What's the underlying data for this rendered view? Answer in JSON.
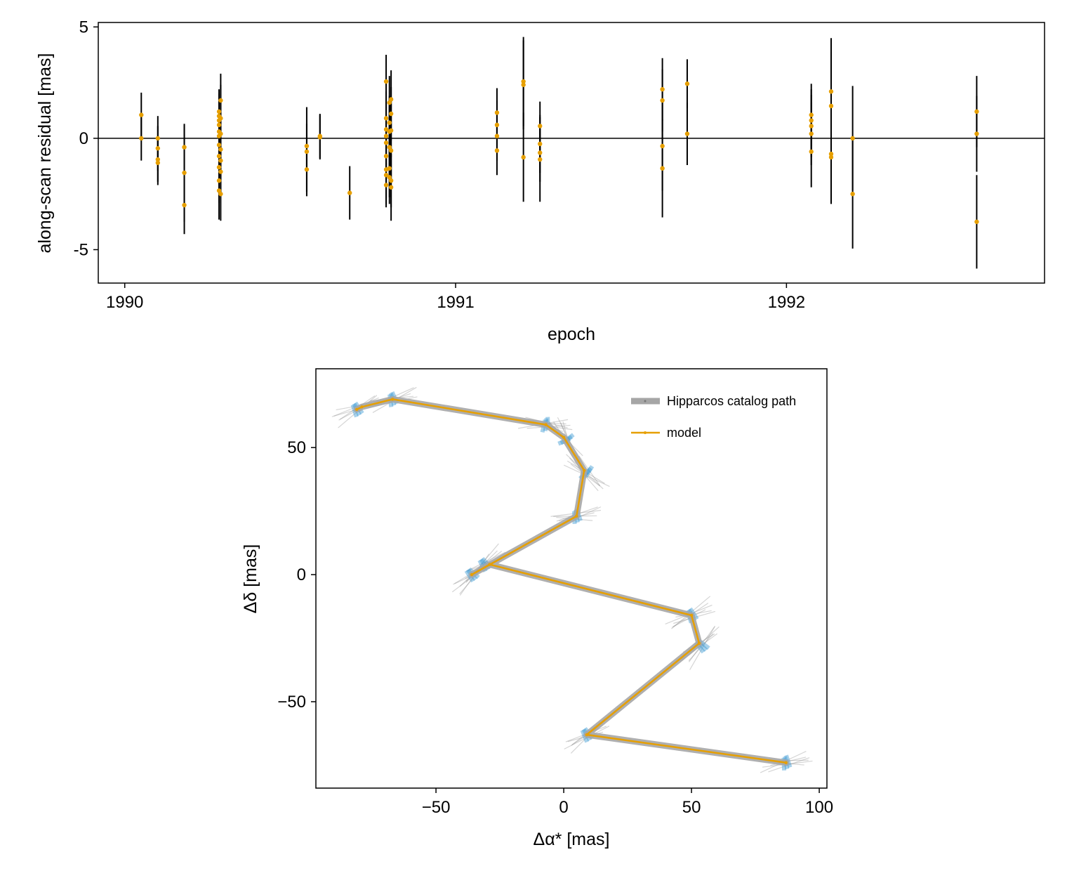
{
  "chart_data": [
    {
      "type": "scatter",
      "xlabel": "epoch",
      "ylabel": "along-scan residual [mas]",
      "xticks": [
        1990,
        1991,
        1992
      ],
      "yticks": [
        -5,
        0,
        5
      ],
      "ytick_labels": [
        "-5",
        "0",
        "5"
      ],
      "xlim": [
        1989.92,
        1992.78
      ],
      "ylim": [
        -6.5,
        5.2
      ],
      "zero_line": 0,
      "colors": {
        "point": "#e69f00",
        "errorbar": "#000000"
      },
      "points": [
        {
          "x": 1990.05,
          "y": 1.05,
          "err": 1.0
        },
        {
          "x": 1990.05,
          "y": 0.0,
          "err": 1.0
        },
        {
          "x": 1990.1,
          "y": 0.0,
          "err": 1.0
        },
        {
          "x": 1990.1,
          "y": -0.45,
          "err": 1.0
        },
        {
          "x": 1990.1,
          "y": -0.95,
          "err": 1.0
        },
        {
          "x": 1990.1,
          "y": -1.1,
          "err": 1.0
        },
        {
          "x": 1990.18,
          "y": -0.4,
          "err": 1.0
        },
        {
          "x": 1990.18,
          "y": -1.55,
          "err": 2.2
        },
        {
          "x": 1990.18,
          "y": -3.0,
          "err": 1.3
        },
        {
          "x": 1990.285,
          "y": 1.2,
          "err": 1.0
        },
        {
          "x": 1990.285,
          "y": 1.0,
          "err": 1.0
        },
        {
          "x": 1990.285,
          "y": 0.8,
          "err": 1.0
        },
        {
          "x": 1990.285,
          "y": 0.6,
          "err": 1.0
        },
        {
          "x": 1990.285,
          "y": 0.3,
          "err": 1.0
        },
        {
          "x": 1990.285,
          "y": 0.1,
          "err": 1.0
        },
        {
          "x": 1990.285,
          "y": -0.3,
          "err": 1.2
        },
        {
          "x": 1990.285,
          "y": -0.8,
          "err": 1.5
        },
        {
          "x": 1990.285,
          "y": -1.3,
          "err": 1.0
        },
        {
          "x": 1990.285,
          "y": -1.9,
          "err": 1.0
        },
        {
          "x": 1990.285,
          "y": -2.35,
          "err": 1.3
        },
        {
          "x": 1990.29,
          "y": 1.7,
          "err": 1.2
        },
        {
          "x": 1990.29,
          "y": 0.9,
          "err": 1.5
        },
        {
          "x": 1990.29,
          "y": 0.2,
          "err": 1.0
        },
        {
          "x": 1990.29,
          "y": -0.5,
          "err": 1.2
        },
        {
          "x": 1990.29,
          "y": -1.0,
          "err": 1.0
        },
        {
          "x": 1990.29,
          "y": -1.5,
          "err": 1.0
        },
        {
          "x": 1990.29,
          "y": -2.5,
          "err": 1.2
        },
        {
          "x": 1990.55,
          "y": -0.35,
          "err": 1.0
        },
        {
          "x": 1990.55,
          "y": -0.6,
          "err": 2.0
        },
        {
          "x": 1990.55,
          "y": -1.4,
          "err": 1.0
        },
        {
          "x": 1990.59,
          "y": 0.1,
          "err": 1.0
        },
        {
          "x": 1990.59,
          "y": 0.05,
          "err": 1.0
        },
        {
          "x": 1990.68,
          "y": -2.45,
          "err": 1.2
        },
        {
          "x": 1990.79,
          "y": 2.55,
          "err": 1.2
        },
        {
          "x": 1990.79,
          "y": 0.9,
          "err": 1.2
        },
        {
          "x": 1990.79,
          "y": 0.4,
          "err": 1.2
        },
        {
          "x": 1990.79,
          "y": 0.1,
          "err": 1.3
        },
        {
          "x": 1990.79,
          "y": -0.2,
          "err": 1.3
        },
        {
          "x": 1990.79,
          "y": -0.8,
          "err": 1.2
        },
        {
          "x": 1990.79,
          "y": -1.4,
          "err": 1.3
        },
        {
          "x": 1990.79,
          "y": -1.65,
          "err": 1.3
        },
        {
          "x": 1990.79,
          "y": -2.1,
          "err": 1.0
        },
        {
          "x": 1990.8,
          "y": 1.6,
          "err": 1.2
        },
        {
          "x": 1990.8,
          "y": 0.7,
          "err": 1.2
        },
        {
          "x": 1990.8,
          "y": 0.3,
          "err": 1.2
        },
        {
          "x": 1990.8,
          "y": -0.4,
          "err": 1.2
        },
        {
          "x": 1990.8,
          "y": -1.35,
          "err": 1.3
        },
        {
          "x": 1990.8,
          "y": -1.75,
          "err": 1.2
        },
        {
          "x": 1990.805,
          "y": 1.75,
          "err": 1.3
        },
        {
          "x": 1990.805,
          "y": 1.1,
          "err": 1.2
        },
        {
          "x": 1990.805,
          "y": 0.35,
          "err": 1.2
        },
        {
          "x": 1990.805,
          "y": -0.55,
          "err": 1.2
        },
        {
          "x": 1990.805,
          "y": -1.9,
          "err": 1.2
        },
        {
          "x": 1990.805,
          "y": -2.2,
          "err": 1.5
        },
        {
          "x": 1991.125,
          "y": 1.15,
          "err": 1.1
        },
        {
          "x": 1991.125,
          "y": 0.6,
          "err": 1.1
        },
        {
          "x": 1991.125,
          "y": 0.1,
          "err": 1.1
        },
        {
          "x": 1991.125,
          "y": -0.55,
          "err": 1.1
        },
        {
          "x": 1991.205,
          "y": 2.55,
          "err": 2.0
        },
        {
          "x": 1991.205,
          "y": 2.4,
          "err": 2.0
        },
        {
          "x": 1991.205,
          "y": -0.85,
          "err": 2.0
        },
        {
          "x": 1991.255,
          "y": 0.55,
          "err": 1.1
        },
        {
          "x": 1991.255,
          "y": -0.25,
          "err": 1.3
        },
        {
          "x": 1991.255,
          "y": -0.65,
          "err": 1.3
        },
        {
          "x": 1991.255,
          "y": -0.95,
          "err": 1.9
        },
        {
          "x": 1991.625,
          "y": 2.2,
          "err": 1.4
        },
        {
          "x": 1991.625,
          "y": 1.7,
          "err": 1.4
        },
        {
          "x": 1991.625,
          "y": -0.35,
          "err": 2.0
        },
        {
          "x": 1991.625,
          "y": -1.35,
          "err": 2.2
        },
        {
          "x": 1991.7,
          "y": 2.45,
          "err": 1.1
        },
        {
          "x": 1991.7,
          "y": 0.2,
          "err": 1.4
        },
        {
          "x": 1992.075,
          "y": 1.05,
          "err": 1.4
        },
        {
          "x": 1992.075,
          "y": 0.8,
          "err": 1.4
        },
        {
          "x": 1992.075,
          "y": 0.55,
          "err": 1.4
        },
        {
          "x": 1992.075,
          "y": 0.2,
          "err": 1.4
        },
        {
          "x": 1992.075,
          "y": -0.6,
          "err": 1.6
        },
        {
          "x": 1992.135,
          "y": 2.1,
          "err": 2.4
        },
        {
          "x": 1992.135,
          "y": 1.45,
          "err": 2.4
        },
        {
          "x": 1992.135,
          "y": -0.7,
          "err": 2.2
        },
        {
          "x": 1992.135,
          "y": -0.85,
          "err": 2.1
        },
        {
          "x": 1992.2,
          "y": 0.0,
          "err": 2.35
        },
        {
          "x": 1992.2,
          "y": -2.5,
          "err": 2.45
        },
        {
          "x": 1992.575,
          "y": 1.2,
          "err": 1.6
        },
        {
          "x": 1992.575,
          "y": 0.2,
          "err": 1.7
        },
        {
          "x": 1992.575,
          "y": -3.75,
          "err": 2.1
        }
      ]
    },
    {
      "type": "line",
      "xlabel": "Δα* [mas]",
      "ylabel": "Δδ [mas]",
      "xticks": [
        -50,
        0,
        50,
        100
      ],
      "xtick_labels": [
        "−50",
        "0",
        "50",
        "100"
      ],
      "yticks": [
        -50,
        0,
        50
      ],
      "ytick_labels": [
        "−50",
        "0",
        "50"
      ],
      "xlim": [
        -97,
        103
      ],
      "ylim": [
        -84,
        81
      ],
      "legend_position": "top-right",
      "colors": {
        "catalog": "#a6a6a6",
        "model": "#e69f00",
        "scan": "#3b9ad2",
        "scan_lines": "#888888"
      },
      "series": [
        {
          "name": "Hipparcos catalog path",
          "x": [
            -81,
            -79,
            -67,
            -7,
            0,
            8,
            5,
            -36,
            -29,
            50,
            53,
            9,
            87
          ],
          "y": [
            65,
            66,
            69,
            59,
            54,
            41,
            23,
            0,
            4,
            -16,
            -27,
            -63,
            -74
          ]
        },
        {
          "name": "model",
          "x": [
            -81,
            -79,
            -67,
            -7,
            0,
            8,
            5,
            -36,
            -29,
            50,
            53,
            9,
            87
          ],
          "y": [
            65,
            66,
            69,
            59,
            54,
            41,
            23,
            0,
            4,
            -16,
            -27,
            -63,
            -74
          ]
        }
      ],
      "scan_clusters": [
        {
          "x": -81,
          "y": 65,
          "angle": 25
        },
        {
          "x": -67,
          "y": 69,
          "angle": 15
        },
        {
          "x": -7,
          "y": 59,
          "angle": -5
        },
        {
          "x": 1,
          "y": 53,
          "angle": -60
        },
        {
          "x": 9,
          "y": 40,
          "angle": -40
        },
        {
          "x": 5,
          "y": 23,
          "angle": 10
        },
        {
          "x": -36,
          "y": 0,
          "angle": 40
        },
        {
          "x": -31,
          "y": 4,
          "angle": 35
        },
        {
          "x": 50,
          "y": -16,
          "angle": 25
        },
        {
          "x": 54,
          "y": -28,
          "angle": 45
        },
        {
          "x": 9,
          "y": -63,
          "angle": 30
        },
        {
          "x": 87,
          "y": -74,
          "angle": 10
        }
      ]
    }
  ]
}
